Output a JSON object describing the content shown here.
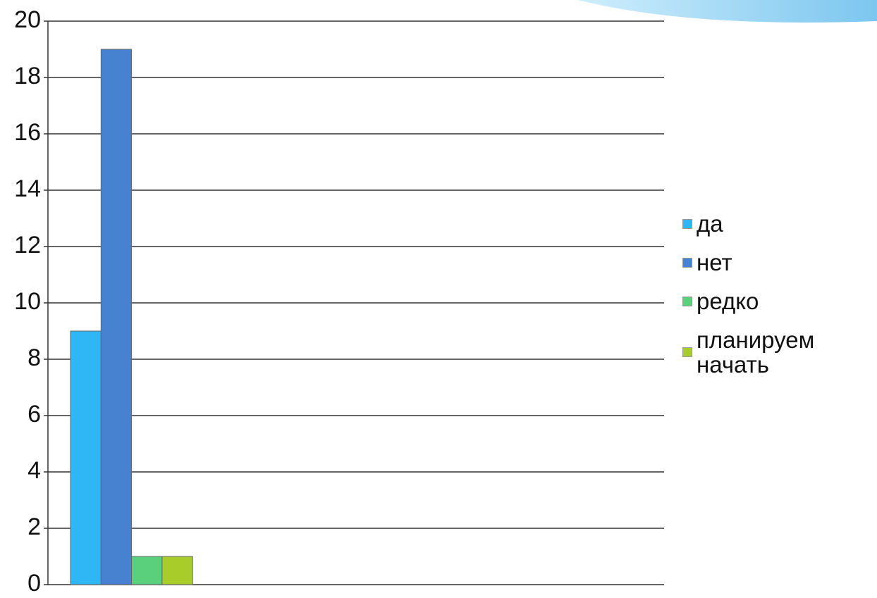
{
  "chart_data": {
    "type": "bar",
    "categories": [
      null
    ],
    "series": [
      {
        "name": "да",
        "color": "#2fb6f5",
        "values": [
          9
        ]
      },
      {
        "name": "нет",
        "color": "#4682d0",
        "values": [
          19
        ]
      },
      {
        "name": "редко",
        "color": "#5bd07c",
        "values": [
          1
        ]
      },
      {
        "name": "планируем начать",
        "color": "#a8cc2a",
        "values": [
          1
        ]
      }
    ],
    "ylim": [
      0,
      20
    ],
    "yticks": [
      0,
      2,
      4,
      6,
      8,
      10,
      12,
      14,
      16,
      18,
      20
    ],
    "grid": true,
    "legend": "right"
  }
}
